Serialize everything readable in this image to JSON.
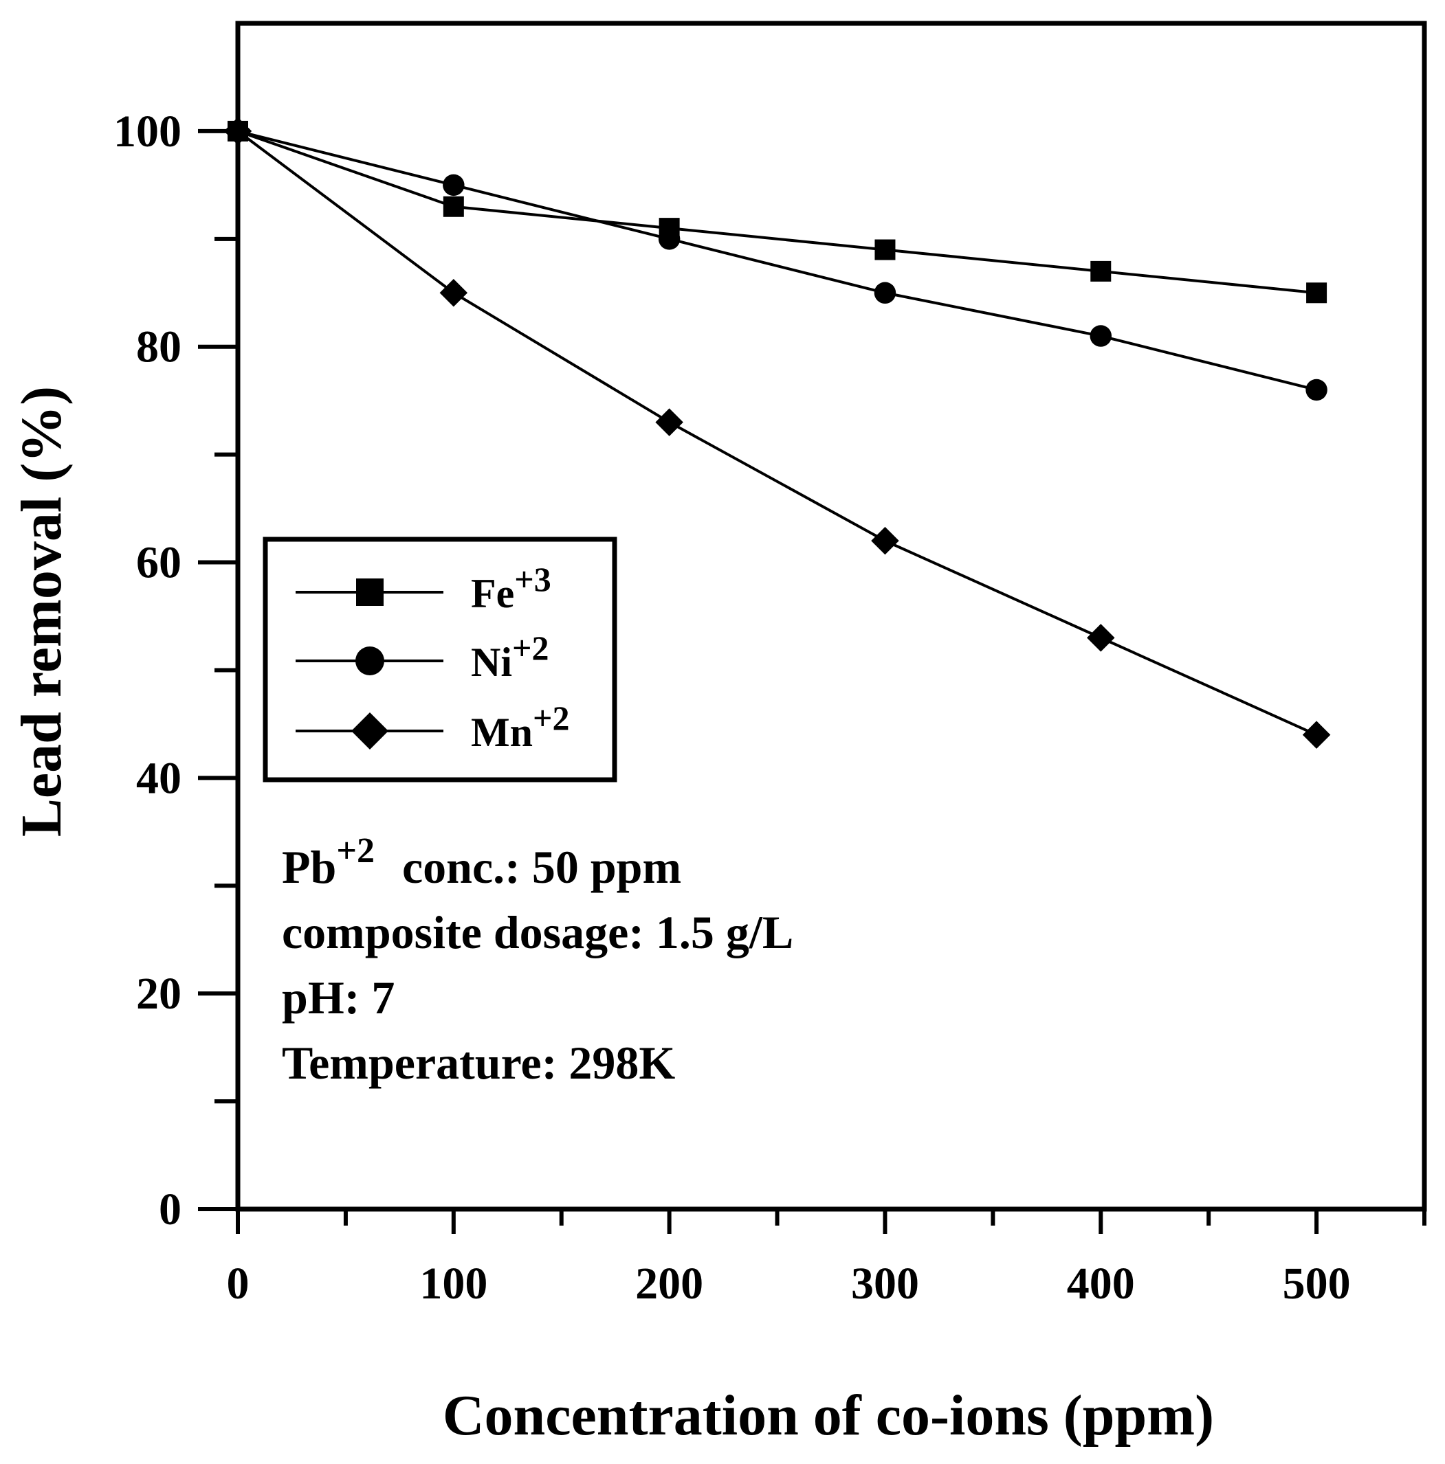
{
  "chart_data": {
    "type": "line",
    "title": "",
    "xlabel": "Concentration of co-ions (ppm)",
    "ylabel": "Lead removal (%)",
    "xlim": [
      0,
      550
    ],
    "ylim": [
      0,
      110
    ],
    "x_ticks": [
      "0",
      "100",
      "200",
      "300",
      "400",
      "500"
    ],
    "y_ticks": [
      "0",
      "20",
      "40",
      "60",
      "80",
      "100"
    ],
    "x": [
      0,
      100,
      200,
      300,
      400,
      500
    ],
    "series": [
      {
        "name": "Fe",
        "charge": "+3",
        "marker": "square",
        "values": [
          100,
          93,
          91,
          89,
          87,
          85
        ]
      },
      {
        "name": "Ni",
        "charge": "+2",
        "marker": "circle",
        "values": [
          100,
          95,
          90,
          85,
          81,
          76
        ]
      },
      {
        "name": "Mn",
        "charge": "+2",
        "marker": "diamond",
        "values": [
          100,
          85,
          73,
          62,
          53,
          44
        ]
      }
    ],
    "legend": {
      "position": "center-left"
    },
    "grid": false,
    "annotations": {
      "ion": "Pb",
      "ion_charge": "+2",
      "line1_rest": "conc.: 50 ppm",
      "line2": "composite dosage: 1.5 g/L",
      "line3": "pH: 7",
      "line4": "Temperature: 298K"
    }
  }
}
